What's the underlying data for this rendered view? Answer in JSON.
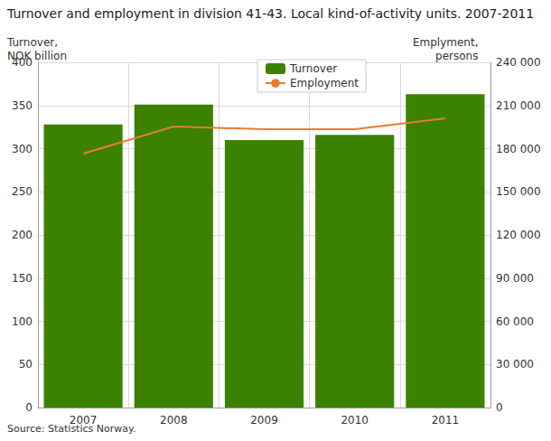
{
  "chart_data": {
    "type": "bar",
    "title": "Turnover and employment in division 41-43. Local kind-of-activity units. 2007-2011",
    "y_label": "Turnover,\nNOK billion",
    "y2_label": "Emplyment,\npersons",
    "source": "Source: Statistics Norway.",
    "categories": [
      "2007",
      "2008",
      "2009",
      "2010",
      "2011"
    ],
    "series": [
      {
        "name": "Turnover",
        "type": "bar",
        "color": "#3a8200",
        "values": [
          328,
          351,
          310,
          316,
          363
        ]
      },
      {
        "name": "Employment",
        "type": "line",
        "axis": "y2",
        "color": "#e87d2a",
        "values": [
          176500,
          195400,
          193500,
          193500,
          201000
        ]
      }
    ],
    "ylim": [
      0,
      400
    ],
    "yticks": [
      0,
      50,
      100,
      150,
      200,
      250,
      300,
      350,
      400
    ],
    "y2lim": [
      0,
      240000
    ],
    "y2ticks": [
      0,
      {
        "value": 30000,
        "label": "30 000"
      },
      {
        "value": 60000,
        "label": "60 000"
      },
      {
        "value": 90000,
        "label": "90 000"
      },
      {
        "value": 120000,
        "label": "120 000"
      },
      {
        "value": 150000,
        "label": "150 000"
      },
      {
        "value": 180000,
        "label": "180 000"
      },
      {
        "value": 210000,
        "label": "210 000"
      },
      {
        "value": 240000,
        "label": "240 000"
      }
    ],
    "grid": true,
    "legend": "top"
  }
}
